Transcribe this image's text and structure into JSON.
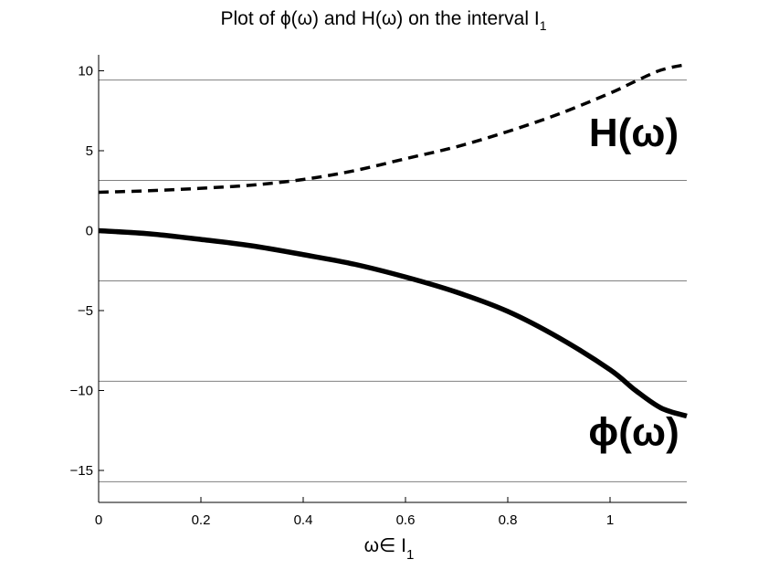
{
  "chart_data": {
    "type": "line",
    "title": "Plot of ϕ(ω) and H(ω) on the interval I",
    "title_subscript": "1",
    "xlabel": "ω∈ I",
    "xlabel_subscript": "1",
    "ylabel": "",
    "xlim": [
      0,
      1.15
    ],
    "ylim": [
      -17,
      11
    ],
    "x_ticks": [
      0,
      0.2,
      0.4,
      0.6,
      0.8,
      1
    ],
    "x_tick_labels": [
      "0",
      "0.2",
      "0.4",
      "0.6",
      "0.8",
      "1"
    ],
    "y_ticks": [
      10,
      5,
      0,
      -5,
      -10,
      -15
    ],
    "y_tick_labels": [
      "10",
      "5",
      "0",
      "−5",
      "−10",
      "−15"
    ],
    "reference_lines_y": [
      9.42,
      3.14,
      -3.14,
      -9.42,
      -15.71
    ],
    "series": [
      {
        "style": "dashed",
        "color": "#000000",
        "x": [
          0,
          0.1,
          0.2,
          0.3,
          0.4,
          0.5,
          0.6,
          0.7,
          0.8,
          0.9,
          1.0,
          1.05,
          1.1,
          1.15
        ],
        "y": [
          2.4,
          2.5,
          2.65,
          2.85,
          3.2,
          3.75,
          4.5,
          5.25,
          6.2,
          7.3,
          8.6,
          9.35,
          10.05,
          10.4
        ]
      },
      {
        "style": "solid",
        "color": "#000000",
        "x": [
          0,
          0.1,
          0.2,
          0.3,
          0.4,
          0.5,
          0.6,
          0.7,
          0.8,
          0.9,
          1.0,
          1.05,
          1.1,
          1.15
        ],
        "y": [
          0,
          -0.2,
          -0.55,
          -0.95,
          -1.5,
          -2.1,
          -2.9,
          -3.85,
          -5.05,
          -6.7,
          -8.7,
          -10.0,
          -11.1,
          -11.6
        ]
      }
    ],
    "annotations": [
      {
        "text": "H(ω)",
        "x": 1.05,
        "y": 6.2
      },
      {
        "text": "ϕ(ω)",
        "x": 1.05,
        "y": -12.5
      }
    ],
    "grid": false,
    "legend": "none"
  }
}
